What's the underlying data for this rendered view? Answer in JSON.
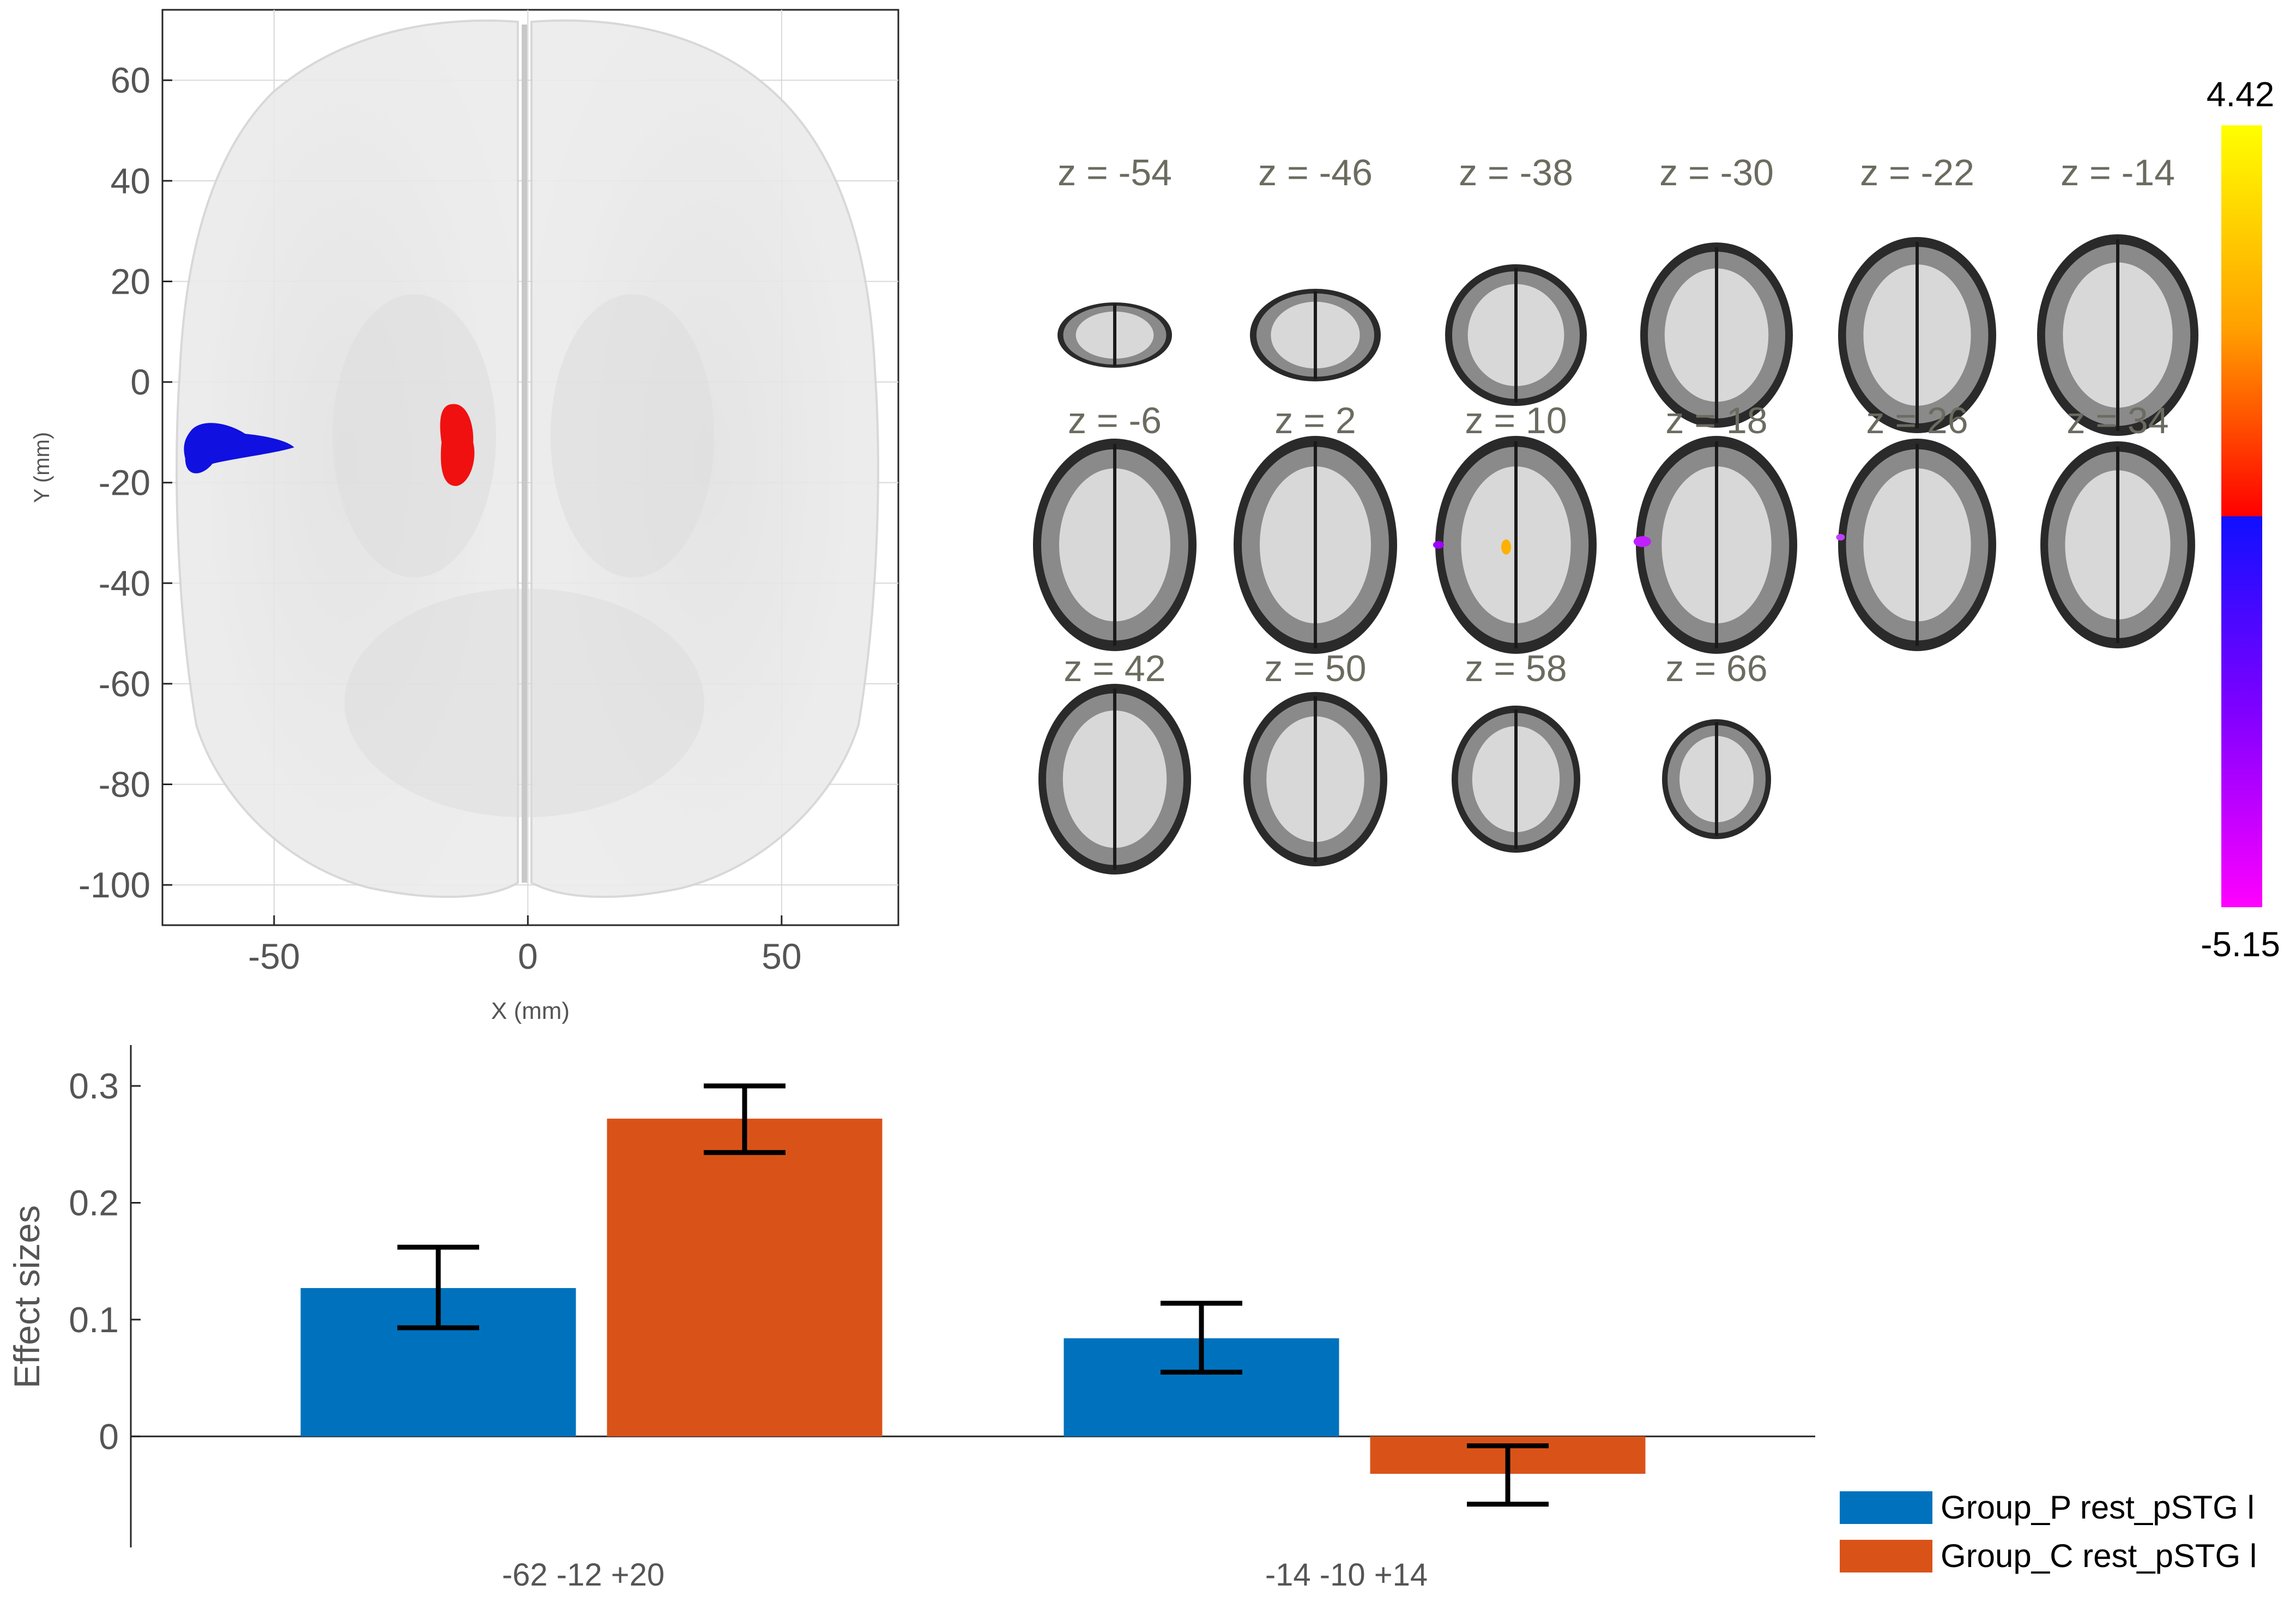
{
  "chart_data": [
    {
      "type": "scatter",
      "xlabel": "X (mm)",
      "ylabel": "Y (mm)",
      "xlim": [
        -72,
        73
      ],
      "ylim": [
        -108,
        74
      ],
      "xticks": [
        -50,
        0,
        50
      ],
      "yticks": [
        60,
        40,
        20,
        0,
        -20,
        -40,
        -60,
        -80,
        -100
      ],
      "grid": true,
      "clusters": [
        {
          "color": "#1010e0",
          "x": -60,
          "y": -13
        },
        {
          "color": "#f01010",
          "x": -14,
          "y": -12
        }
      ]
    },
    {
      "type": "other",
      "slices": [
        "z = -54",
        "z = -46",
        "z = -38",
        "z = -30",
        "z = -22",
        "z = -14",
        "z = -6",
        "z = 2",
        "z = 10",
        "z = 18",
        "z = 26",
        "z = 34",
        "z = 42",
        "z = 50",
        "z = 58",
        "z = 66"
      ],
      "colorbar": {
        "max": "4.42",
        "min": "-5.15",
        "positive_colors": [
          "#ff0000",
          "#ff8000",
          "#ffff00"
        ],
        "negative_colors": [
          "#1010ff",
          "#8000ff",
          "#ff00ff"
        ]
      }
    },
    {
      "type": "bar",
      "ylabel": "Effect sizes",
      "ylim": [
        -0.095,
        0.335
      ],
      "yticks": [
        0.3,
        0.2,
        0.1,
        0
      ],
      "categories": [
        "-62 -12 +20",
        "-14 -10 +14"
      ],
      "series": [
        {
          "name": "Group_P rest_pSTG l",
          "color": "#0072bd",
          "values": [
            0.127,
            0.084
          ],
          "error_low": [
            0.093,
            0.055
          ],
          "error_high": [
            0.162,
            0.114
          ]
        },
        {
          "name": "Group_C rest_pSTG l",
          "color": "#d95319",
          "values": [
            0.272,
            -0.032
          ],
          "error_low": [
            0.243,
            -0.058
          ],
          "error_high": [
            0.3,
            -0.008
          ]
        }
      ],
      "legend": "bottom-right"
    }
  ]
}
